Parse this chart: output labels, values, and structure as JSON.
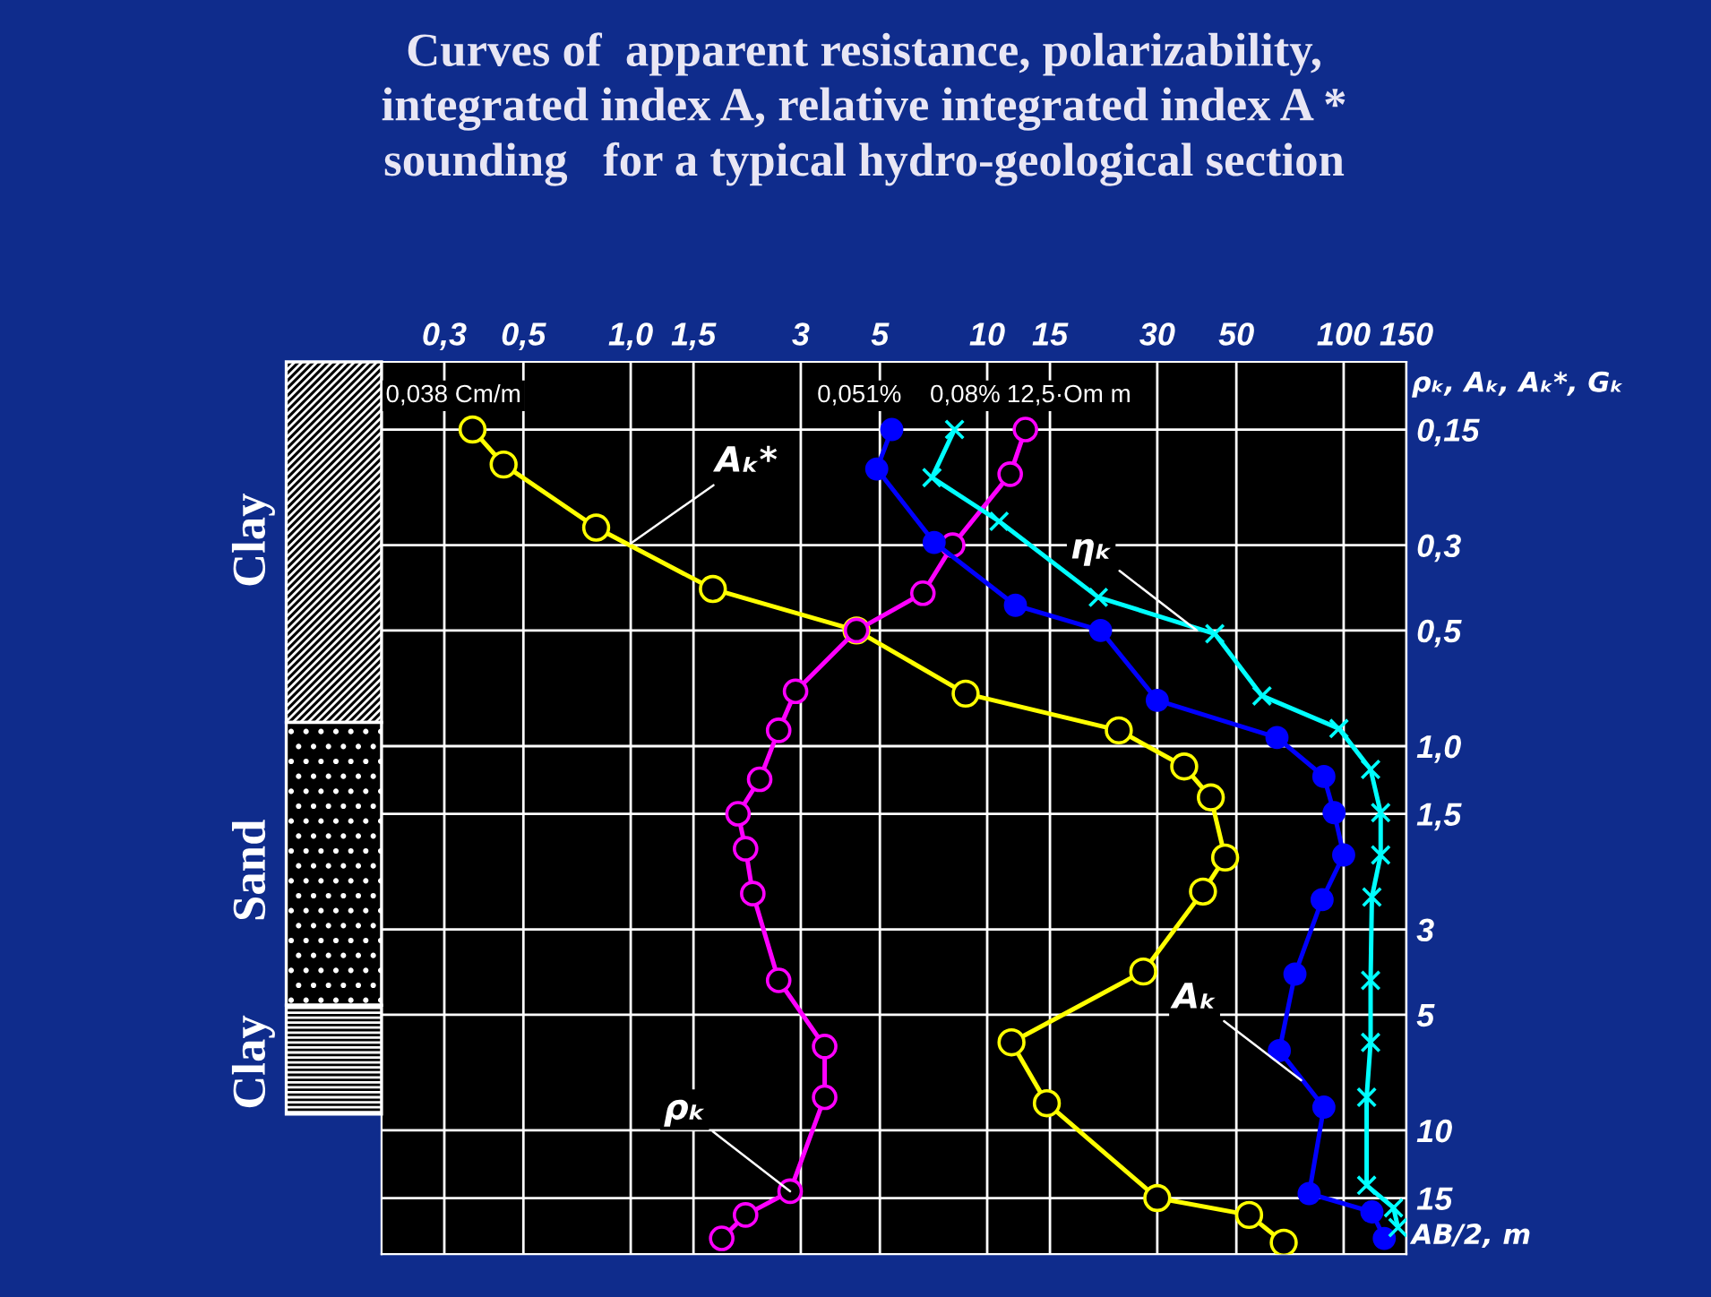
{
  "chart_data": {
    "type": "line",
    "title": "Curves of  apparent resistance, polarizability,\nintegrated index A, relative integrated index A *\nsounding   for a typical hydro-geological section",
    "xlabel": "ρₖ, Aₖ, Aₖ*, Gₖ",
    "ylabel": "AB/2, m",
    "log": "xy",
    "xlim": [
      0.2,
      150
    ],
    "xticks": [
      {
        "value": 0.3,
        "label": "0,3"
      },
      {
        "value": 0.5,
        "label": "0,5"
      },
      {
        "value": 1,
        "label": "1,0"
      },
      {
        "value": 1.5,
        "label": "1,5"
      },
      3,
      5,
      10,
      15,
      30,
      50,
      100,
      150
    ],
    "ylim": [
      21,
      0.1
    ],
    "yticks": [
      {
        "value": 0.15,
        "label": "0,15"
      },
      {
        "value": 0.3,
        "label": "0,3"
      },
      {
        "value": 0.5,
        "label": "0,5"
      },
      {
        "value": 1,
        "label": "1,0"
      },
      {
        "value": 1.5,
        "label": "1,5"
      },
      3,
      5,
      10,
      15
    ],
    "grid": true,
    "tick_labels": "xy",
    "line_style": "solid",
    "series": [
      {
        "color": "#ffff00",
        "marker": "circle",
        "x": [
          0.36,
          0.44,
          0.8,
          1.7,
          4.3,
          8.7,
          23.4,
          35.7,
          42.4,
          46.5,
          40.3,
          27.4,
          11.7,
          14.7,
          30,
          54.3,
          67.9
        ],
        "values": [
          0.15,
          0.185,
          0.27,
          0.39,
          0.5,
          0.73,
          0.91,
          1.13,
          1.36,
          1.95,
          2.39,
          3.86,
          5.9,
          8.5,
          15,
          16.6,
          19.6
        ]
      },
      {
        "color": "#ff00ff",
        "marker": "circle",
        "x": [
          12.8,
          11.6,
          8.0,
          6.6,
          4.3,
          2.9,
          2.6,
          2.3,
          2.0,
          2.1,
          2.2,
          2.6,
          3.5,
          3.5,
          2.8,
          2.1,
          1.8
        ],
        "values": [
          0.15,
          0.196,
          0.3,
          0.4,
          0.5,
          0.72,
          0.91,
          1.22,
          1.5,
          1.85,
          2.42,
          4.07,
          6.05,
          8.2,
          14.4,
          16.6,
          19.1
        ]
      },
      {
        "color": "#0000ff",
        "marker": "circle",
        "x": [
          5.4,
          4.9,
          7.1,
          12.0,
          20.8,
          30,
          65,
          88,
          94,
          100,
          87,
          73,
          66,
          88,
          80,
          120,
          130
        ],
        "values": [
          0.15,
          0.19,
          0.295,
          0.43,
          0.5,
          0.76,
          0.95,
          1.2,
          1.49,
          1.92,
          2.51,
          3.92,
          6.2,
          8.7,
          14.6,
          16.3,
          19.1
        ]
      },
      {
        "color": "#00ffff",
        "marker": "cross",
        "x": [
          8.1,
          7.0,
          10.8,
          20.5,
          43.5,
          59,
          97,
          119,
          127,
          127,
          120,
          119,
          119,
          116,
          116,
          138,
          142
        ],
        "values": [
          0.15,
          0.2,
          0.26,
          0.41,
          0.51,
          0.74,
          0.9,
          1.15,
          1.49,
          1.92,
          2.47,
          4.07,
          5.9,
          8.2,
          13.9,
          15.9,
          17.9
        ]
      }
    ],
    "annotations": [
      "0,038 Cm/m",
      "0,051%",
      "0,08%",
      "12,5·Om m",
      "Clay",
      "Sand",
      "Clay",
      {
        "text": "Aₖ*",
        "x": 1.0,
        "y": 0.297
      },
      {
        "text": "ηₖ",
        "x": 38.7,
        "y": 0.5
      },
      {
        "text": "Aₖ",
        "x": 76,
        "y": 7.4
      },
      {
        "text": "ρₖ",
        "x": 2.8,
        "y": 14.4
      }
    ]
  }
}
